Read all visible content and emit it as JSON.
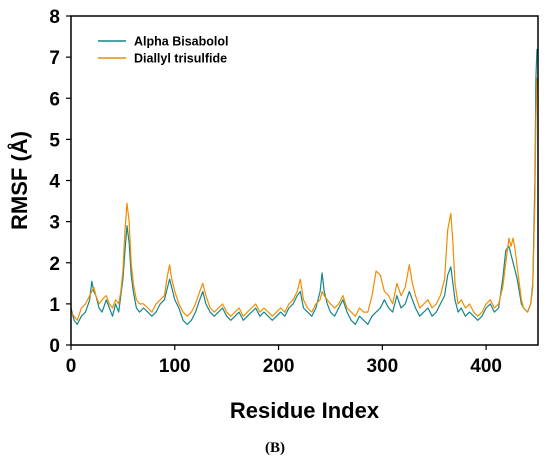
{
  "panel_label": "(B)",
  "chart_data": {
    "type": "line",
    "xlabel": "Residue Index",
    "ylabel": "RMSF (Å)",
    "xlim": [
      0,
      450
    ],
    "ylim": [
      0,
      8
    ],
    "xticks": [
      0,
      100,
      200,
      300,
      400
    ],
    "yticks": [
      0,
      1,
      2,
      3,
      4,
      5,
      6,
      7,
      8
    ],
    "grid": false,
    "legend_position": "top-left",
    "series": [
      {
        "name": "Alpha Bisabolol",
        "color": "#13878a",
        "points": [
          [
            0,
            0.9
          ],
          [
            3,
            0.6
          ],
          [
            6,
            0.5
          ],
          [
            10,
            0.7
          ],
          [
            14,
            0.8
          ],
          [
            18,
            1.1
          ],
          [
            20,
            1.55
          ],
          [
            22,
            1.3
          ],
          [
            24,
            1.2
          ],
          [
            27,
            0.9
          ],
          [
            30,
            0.8
          ],
          [
            34,
            1.1
          ],
          [
            37,
            0.9
          ],
          [
            40,
            0.7
          ],
          [
            43,
            1.0
          ],
          [
            46,
            0.8
          ],
          [
            48,
            1.2
          ],
          [
            50,
            1.6
          ],
          [
            52,
            2.3
          ],
          [
            54,
            2.9
          ],
          [
            56,
            2.5
          ],
          [
            58,
            1.7
          ],
          [
            60,
            1.3
          ],
          [
            63,
            0.9
          ],
          [
            66,
            0.8
          ],
          [
            70,
            0.9
          ],
          [
            74,
            0.8
          ],
          [
            78,
            0.7
          ],
          [
            82,
            0.8
          ],
          [
            86,
            1.0
          ],
          [
            90,
            1.1
          ],
          [
            93,
            1.4
          ],
          [
            95,
            1.6
          ],
          [
            97,
            1.4
          ],
          [
            100,
            1.1
          ],
          [
            104,
            0.9
          ],
          [
            108,
            0.6
          ],
          [
            112,
            0.5
          ],
          [
            116,
            0.6
          ],
          [
            120,
            0.8
          ],
          [
            124,
            1.1
          ],
          [
            127,
            1.3
          ],
          [
            130,
            1.0
          ],
          [
            134,
            0.8
          ],
          [
            138,
            0.7
          ],
          [
            142,
            0.8
          ],
          [
            146,
            0.9
          ],
          [
            150,
            0.7
          ],
          [
            154,
            0.6
          ],
          [
            158,
            0.7
          ],
          [
            162,
            0.8
          ],
          [
            166,
            0.6
          ],
          [
            170,
            0.7
          ],
          [
            174,
            0.8
          ],
          [
            178,
            0.9
          ],
          [
            182,
            0.7
          ],
          [
            186,
            0.8
          ],
          [
            190,
            0.7
          ],
          [
            194,
            0.6
          ],
          [
            198,
            0.7
          ],
          [
            202,
            0.8
          ],
          [
            206,
            0.7
          ],
          [
            210,
            0.9
          ],
          [
            214,
            1.0
          ],
          [
            218,
            1.2
          ],
          [
            221,
            1.3
          ],
          [
            224,
            0.9
          ],
          [
            228,
            0.8
          ],
          [
            232,
            0.7
          ],
          [
            236,
            0.9
          ],
          [
            240,
            1.3
          ],
          [
            242,
            1.75
          ],
          [
            244,
            1.3
          ],
          [
            247,
            1.0
          ],
          [
            250,
            0.8
          ],
          [
            254,
            0.7
          ],
          [
            258,
            0.9
          ],
          [
            262,
            1.1
          ],
          [
            266,
            0.8
          ],
          [
            270,
            0.6
          ],
          [
            274,
            0.5
          ],
          [
            278,
            0.7
          ],
          [
            282,
            0.6
          ],
          [
            286,
            0.5
          ],
          [
            290,
            0.7
          ],
          [
            294,
            0.8
          ],
          [
            298,
            0.9
          ],
          [
            302,
            1.1
          ],
          [
            306,
            0.9
          ],
          [
            310,
            0.8
          ],
          [
            314,
            1.2
          ],
          [
            318,
            0.9
          ],
          [
            322,
            1.0
          ],
          [
            326,
            1.3
          ],
          [
            329,
            1.1
          ],
          [
            332,
            0.9
          ],
          [
            336,
            0.7
          ],
          [
            340,
            0.8
          ],
          [
            344,
            0.9
          ],
          [
            348,
            0.7
          ],
          [
            352,
            0.8
          ],
          [
            356,
            1.0
          ],
          [
            360,
            1.2
          ],
          [
            363,
            1.7
          ],
          [
            366,
            1.9
          ],
          [
            368,
            1.5
          ],
          [
            370,
            1.1
          ],
          [
            373,
            0.8
          ],
          [
            376,
            0.9
          ],
          [
            380,
            0.7
          ],
          [
            384,
            0.8
          ],
          [
            388,
            0.7
          ],
          [
            392,
            0.6
          ],
          [
            396,
            0.7
          ],
          [
            400,
            0.9
          ],
          [
            404,
            1.0
          ],
          [
            408,
            0.8
          ],
          [
            412,
            0.9
          ],
          [
            416,
            1.6
          ],
          [
            419,
            2.3
          ],
          [
            422,
            2.4
          ],
          [
            424,
            2.2
          ],
          [
            426,
            2.0
          ],
          [
            428,
            1.8
          ],
          [
            430,
            1.6
          ],
          [
            432,
            1.3
          ],
          [
            434,
            1.0
          ],
          [
            436,
            0.9
          ],
          [
            440,
            0.8
          ],
          [
            443,
            1.0
          ],
          [
            445,
            1.5
          ],
          [
            447,
            4.0
          ],
          [
            448,
            6.5
          ],
          [
            449,
            7.2
          ]
        ]
      },
      {
        "name": "Diallyl trisulfide",
        "color": "#f28c00",
        "points": [
          [
            0,
            0.8
          ],
          [
            3,
            0.7
          ],
          [
            6,
            0.6
          ],
          [
            10,
            0.9
          ],
          [
            14,
            1.0
          ],
          [
            18,
            1.2
          ],
          [
            20,
            1.3
          ],
          [
            22,
            1.4
          ],
          [
            24,
            1.2
          ],
          [
            27,
            1.0
          ],
          [
            30,
            1.1
          ],
          [
            34,
            1.2
          ],
          [
            37,
            1.0
          ],
          [
            40,
            0.9
          ],
          [
            43,
            1.1
          ],
          [
            46,
            1.0
          ],
          [
            48,
            1.3
          ],
          [
            50,
            1.8
          ],
          [
            52,
            2.8
          ],
          [
            54,
            3.45
          ],
          [
            56,
            3.0
          ],
          [
            58,
            2.0
          ],
          [
            60,
            1.5
          ],
          [
            63,
            1.1
          ],
          [
            66,
            1.0
          ],
          [
            70,
            1.0
          ],
          [
            74,
            0.9
          ],
          [
            78,
            0.8
          ],
          [
            82,
            1.0
          ],
          [
            86,
            1.1
          ],
          [
            90,
            1.2
          ],
          [
            93,
            1.7
          ],
          [
            95,
            1.95
          ],
          [
            97,
            1.6
          ],
          [
            100,
            1.3
          ],
          [
            104,
            1.0
          ],
          [
            108,
            0.8
          ],
          [
            112,
            0.7
          ],
          [
            116,
            0.8
          ],
          [
            120,
            1.0
          ],
          [
            124,
            1.3
          ],
          [
            127,
            1.5
          ],
          [
            130,
            1.2
          ],
          [
            134,
            0.9
          ],
          [
            138,
            0.8
          ],
          [
            142,
            0.9
          ],
          [
            146,
            1.0
          ],
          [
            150,
            0.8
          ],
          [
            154,
            0.7
          ],
          [
            158,
            0.8
          ],
          [
            162,
            0.9
          ],
          [
            166,
            0.7
          ],
          [
            170,
            0.8
          ],
          [
            174,
            0.9
          ],
          [
            178,
            1.0
          ],
          [
            182,
            0.8
          ],
          [
            186,
            0.9
          ],
          [
            190,
            0.8
          ],
          [
            194,
            0.7
          ],
          [
            198,
            0.8
          ],
          [
            202,
            0.9
          ],
          [
            206,
            0.8
          ],
          [
            210,
            1.0
          ],
          [
            214,
            1.1
          ],
          [
            218,
            1.3
          ],
          [
            221,
            1.6
          ],
          [
            224,
            1.1
          ],
          [
            228,
            0.9
          ],
          [
            232,
            0.8
          ],
          [
            236,
            1.0
          ],
          [
            240,
            1.1
          ],
          [
            242,
            1.3
          ],
          [
            244,
            1.2
          ],
          [
            247,
            1.1
          ],
          [
            250,
            1.0
          ],
          [
            254,
            0.9
          ],
          [
            258,
            1.0
          ],
          [
            262,
            1.2
          ],
          [
            266,
            0.9
          ],
          [
            270,
            0.8
          ],
          [
            274,
            0.7
          ],
          [
            278,
            0.9
          ],
          [
            282,
            0.8
          ],
          [
            286,
            0.8
          ],
          [
            290,
            1.2
          ],
          [
            294,
            1.8
          ],
          [
            298,
            1.7
          ],
          [
            302,
            1.3
          ],
          [
            306,
            1.2
          ],
          [
            310,
            1.0
          ],
          [
            314,
            1.5
          ],
          [
            318,
            1.2
          ],
          [
            322,
            1.4
          ],
          [
            326,
            1.95
          ],
          [
            329,
            1.5
          ],
          [
            332,
            1.2
          ],
          [
            336,
            0.9
          ],
          [
            340,
            1.0
          ],
          [
            344,
            1.1
          ],
          [
            348,
            0.9
          ],
          [
            352,
            1.0
          ],
          [
            356,
            1.2
          ],
          [
            360,
            1.6
          ],
          [
            363,
            2.8
          ],
          [
            366,
            3.2
          ],
          [
            368,
            2.5
          ],
          [
            370,
            1.5
          ],
          [
            373,
            1.0
          ],
          [
            376,
            1.1
          ],
          [
            380,
            0.9
          ],
          [
            384,
            1.0
          ],
          [
            388,
            0.8
          ],
          [
            392,
            0.7
          ],
          [
            396,
            0.8
          ],
          [
            400,
            1.0
          ],
          [
            404,
            1.1
          ],
          [
            408,
            0.9
          ],
          [
            412,
            1.0
          ],
          [
            416,
            1.4
          ],
          [
            419,
            2.0
          ],
          [
            422,
            2.6
          ],
          [
            424,
            2.4
          ],
          [
            426,
            2.6
          ],
          [
            428,
            2.3
          ],
          [
            430,
            1.9
          ],
          [
            432,
            1.5
          ],
          [
            434,
            1.1
          ],
          [
            436,
            0.9
          ],
          [
            440,
            0.8
          ],
          [
            443,
            1.0
          ],
          [
            445,
            1.4
          ],
          [
            447,
            3.5
          ],
          [
            448,
            5.5
          ],
          [
            449,
            6.5
          ]
        ]
      }
    ]
  }
}
